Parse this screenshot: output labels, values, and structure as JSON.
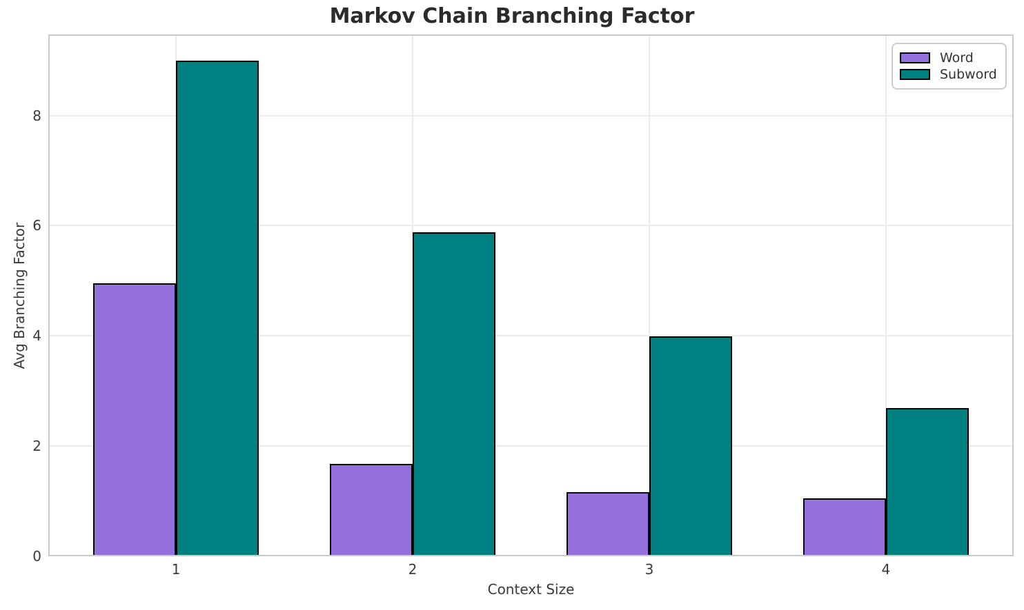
{
  "chart_data": {
    "type": "bar",
    "title": "Markov Chain Branching Factor",
    "xlabel": "Context Size",
    "ylabel": "Avg Branching Factor",
    "categories": [
      "1",
      "2",
      "3",
      "4"
    ],
    "x_values": [
      1,
      2,
      3,
      4
    ],
    "series": [
      {
        "name": "Word",
        "color": "#9370DB",
        "values": [
          4.95,
          1.68,
          1.16,
          1.05
        ]
      },
      {
        "name": "Subword",
        "color": "#008080",
        "values": [
          8.99,
          5.88,
          3.99,
          2.69
        ]
      }
    ],
    "bar_width": 0.35,
    "bar_edge_color": "#000000",
    "ytick_labels": [
      "0",
      "2",
      "4",
      "6",
      "8"
    ],
    "ytick_values": [
      0,
      2,
      4,
      6,
      8
    ],
    "ylim": [
      0,
      9.47
    ],
    "xlim": [
      0.46,
      4.54
    ],
    "grid": true,
    "legend_position": "upper right",
    "colors": {
      "background": "#ffffff",
      "grid": "#ebebeb",
      "spine": "#c9c9c9",
      "title_text": "#2b2b2b",
      "tick_text": "#3a3a3a",
      "legend_border": "#cccccc"
    }
  }
}
